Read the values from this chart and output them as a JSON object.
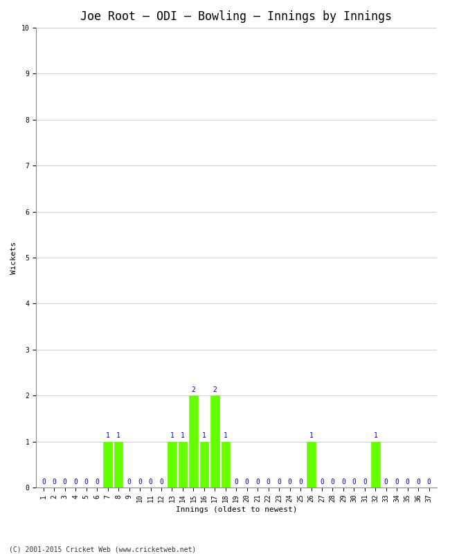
{
  "title": "Joe Root – ODI – Bowling – Innings by Innings",
  "xlabel": "Innings (oldest to newest)",
  "ylabel": "Wickets",
  "footer": "(C) 2001-2015 Cricket Web (www.cricketweb.net)",
  "innings": [
    1,
    2,
    3,
    4,
    5,
    6,
    7,
    8,
    9,
    10,
    11,
    12,
    13,
    14,
    15,
    16,
    17,
    18,
    19,
    20,
    21,
    22,
    23,
    24,
    25,
    26,
    27,
    28,
    29,
    30,
    31,
    32,
    33,
    34,
    35,
    36,
    37
  ],
  "wickets": [
    0,
    0,
    0,
    0,
    0,
    0,
    1,
    1,
    0,
    0,
    0,
    0,
    1,
    1,
    2,
    1,
    2,
    1,
    0,
    0,
    0,
    0,
    0,
    0,
    0,
    1,
    0,
    0,
    0,
    0,
    0,
    1,
    0,
    0,
    0,
    0,
    0
  ],
  "bar_color": "#66ff00",
  "bar_edge_color": "#66ff00",
  "label_color": "#0000cc",
  "background_color": "#ffffff",
  "plot_bg_color": "#ffffff",
  "ylim": [
    0,
    10
  ],
  "yticks": [
    0,
    1,
    2,
    3,
    4,
    5,
    6,
    7,
    8,
    9,
    10
  ],
  "grid_color": "#d0d0d0",
  "title_fontsize": 12,
  "axis_label_fontsize": 8,
  "tick_fontsize": 7,
  "annotation_fontsize": 7,
  "footer_fontsize": 7
}
